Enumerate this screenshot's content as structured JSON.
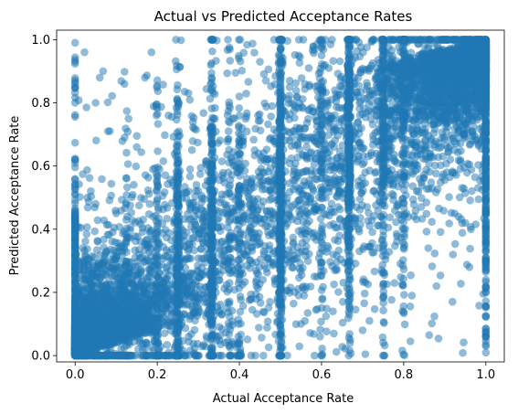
{
  "chart_data": {
    "type": "scatter",
    "title": "Actual vs Predicted Acceptance Rates",
    "xlabel": "Actual Acceptance Rate",
    "ylabel": "Predicted Acceptance Rate",
    "xlim": [
      -0.045,
      1.045
    ],
    "ylim": [
      -0.02,
      1.03
    ],
    "xticks": [
      "0.0",
      "0.2",
      "0.4",
      "0.6",
      "0.8",
      "1.0"
    ],
    "yticks": [
      "0.0",
      "0.2",
      "0.4",
      "0.6",
      "0.8",
      "1.0"
    ],
    "grid": false,
    "legend": "none",
    "point_color": "#1f77b4",
    "point_alpha": 0.5,
    "series": [
      {
        "points_sample": [
          [
            0.0,
            0.99
          ],
          [
            0.0,
            0.93
          ],
          [
            0.0,
            0.86
          ],
          [
            0.0,
            0.61
          ],
          [
            0.0,
            0.35
          ],
          [
            0.0,
            0.12
          ],
          [
            0.0,
            0.02
          ],
          [
            0.03,
            0.5
          ],
          [
            0.05,
            0.8
          ],
          [
            0.06,
            0.88
          ],
          [
            0.08,
            0.71
          ],
          [
            0.12,
            0.86
          ],
          [
            0.13,
            0.75
          ],
          [
            0.17,
            0.88
          ],
          [
            0.05,
            0.48
          ],
          [
            0.1,
            0.45
          ],
          [
            0.15,
            0.66
          ],
          [
            0.2,
            0.4
          ],
          [
            0.25,
            0.55
          ],
          [
            0.25,
            0.3
          ],
          [
            0.25,
            0.1
          ],
          [
            0.33,
            1.0
          ],
          [
            0.33,
            0.86
          ],
          [
            0.33,
            0.5
          ],
          [
            0.33,
            0.05
          ],
          [
            0.4,
            0.82
          ],
          [
            0.45,
            0.93
          ],
          [
            0.5,
            0.97
          ],
          [
            0.5,
            0.75
          ],
          [
            0.5,
            0.5
          ],
          [
            0.5,
            0.25
          ],
          [
            0.5,
            0.03
          ],
          [
            0.55,
            0.1
          ],
          [
            0.6,
            0.95
          ],
          [
            0.63,
            0.07
          ],
          [
            0.67,
            0.98
          ],
          [
            0.67,
            0.6
          ],
          [
            0.67,
            0.3
          ],
          [
            0.67,
            0.05
          ],
          [
            0.7,
            0.08
          ],
          [
            0.75,
            0.22
          ],
          [
            0.8,
            0.99
          ],
          [
            0.8,
            0.4
          ],
          [
            0.82,
            0.19
          ],
          [
            0.86,
            0.34
          ],
          [
            0.88,
            0.22
          ],
          [
            0.92,
            0.32
          ],
          [
            0.95,
            0.42
          ],
          [
            0.96,
            0.28
          ],
          [
            1.0,
            1.0
          ],
          [
            1.0,
            0.8
          ],
          [
            1.0,
            0.55
          ],
          [
            1.0,
            0.3
          ],
          [
            1.0,
            0.03
          ]
        ]
      }
    ]
  }
}
